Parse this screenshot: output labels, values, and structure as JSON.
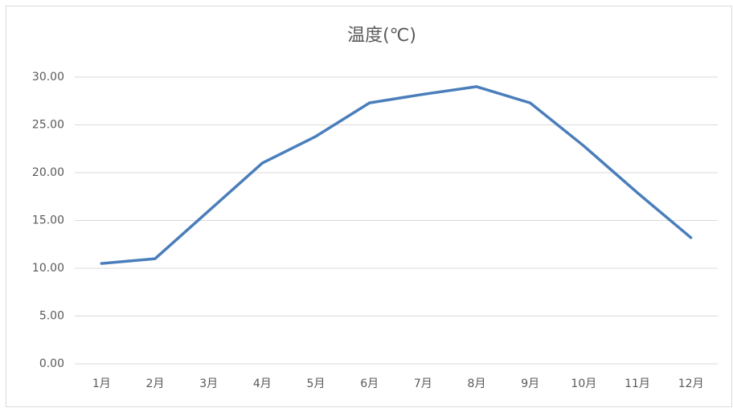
{
  "chart_data": {
    "type": "line",
    "title": "温度(℃)",
    "categories": [
      "1月",
      "2月",
      "3月",
      "4月",
      "5月",
      "6月",
      "7月",
      "8月",
      "9月",
      "10月",
      "11月",
      "12月"
    ],
    "values": [
      10.5,
      11.0,
      16.0,
      21.0,
      23.8,
      27.3,
      28.2,
      29.0,
      27.3,
      22.8,
      17.9,
      13.2
    ],
    "color": "#4a7ebb",
    "ylim": [
      0,
      30
    ],
    "yticks": [
      {
        "value": 0,
        "label": "0.00"
      },
      {
        "value": 5,
        "label": "5.00"
      },
      {
        "value": 10,
        "label": "10.00"
      },
      {
        "value": 15,
        "label": "15.00"
      },
      {
        "value": 20,
        "label": "20.00"
      },
      {
        "value": 25,
        "label": "25.00"
      },
      {
        "value": 30,
        "label": "30.00"
      }
    ],
    "grid": true
  }
}
